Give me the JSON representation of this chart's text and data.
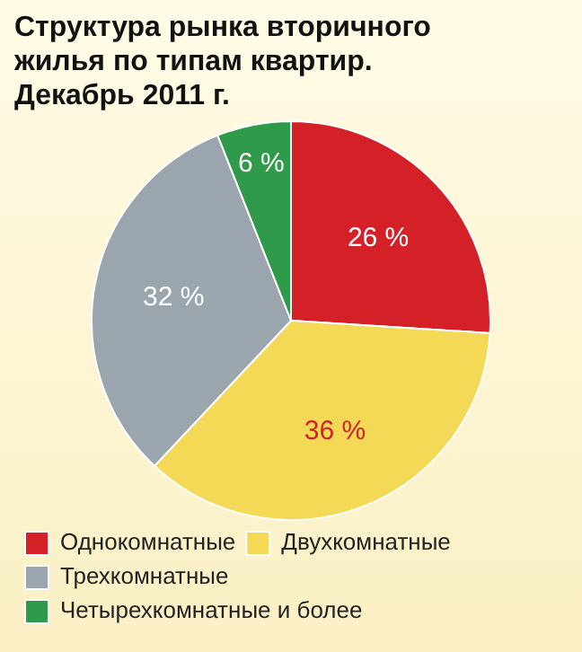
{
  "chart_data": {
    "type": "pie",
    "title": "Структура рынка вторичного жилья по типам квартир. Декабрь 2011 г.",
    "categories": [
      "Однокомнатные",
      "Двухкомнатные",
      "Трехкомнатные",
      "Четырехкомнатные и более"
    ],
    "values": [
      26,
      36,
      32,
      6
    ],
    "colors": [
      "#d42027",
      "#f3d955",
      "#9ba5ae",
      "#2f9a4a"
    ],
    "value_labels": [
      "26 %",
      "36 %",
      "32 %",
      "6 %"
    ],
    "legend": "bottom"
  }
}
